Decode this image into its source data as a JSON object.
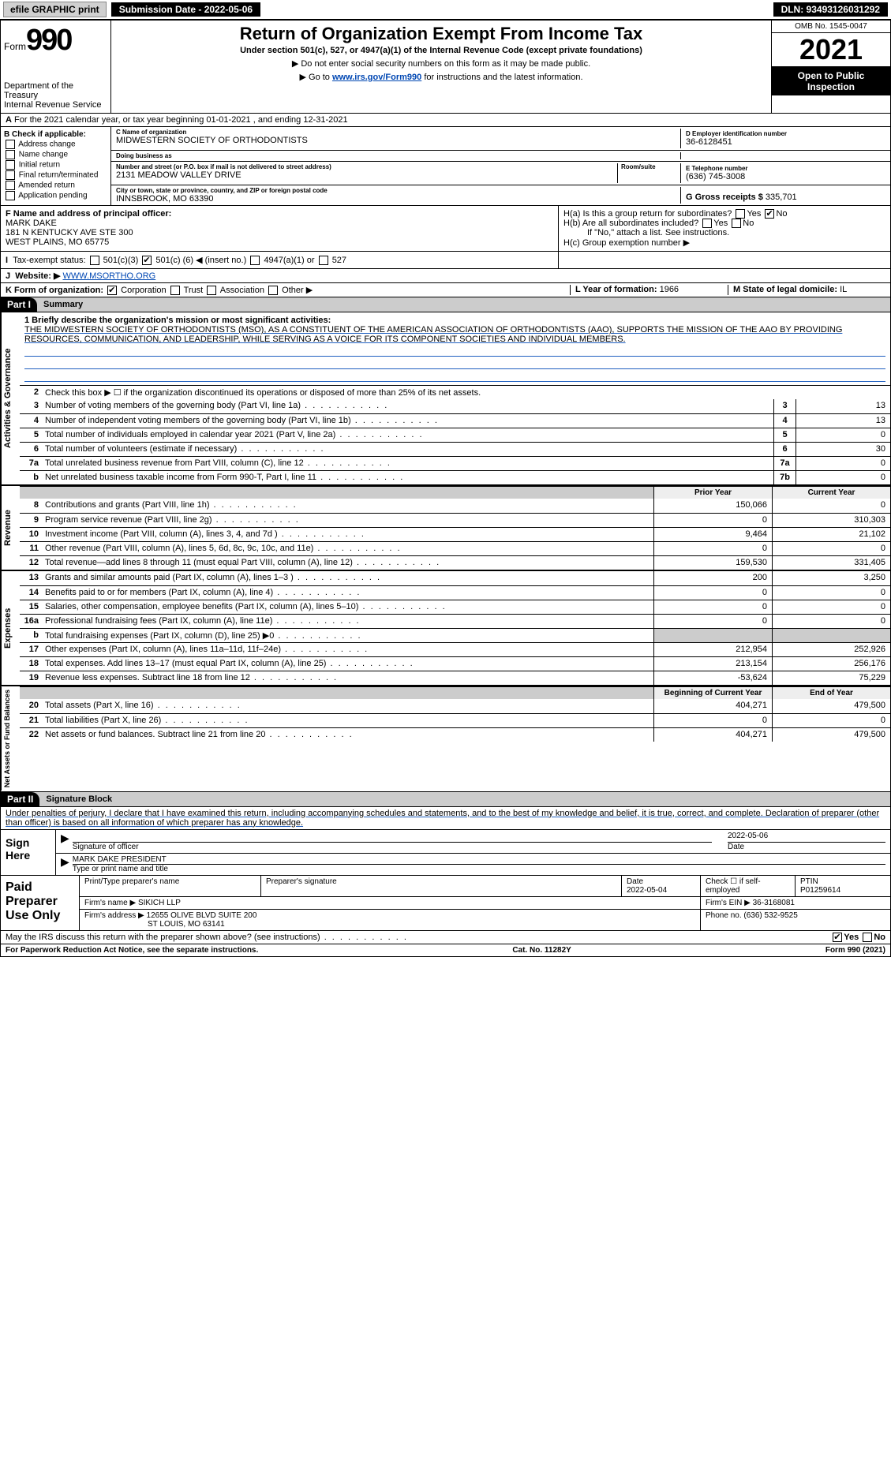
{
  "topbar": {
    "efile": "efile GRAPHIC print",
    "submission_label": "Submission Date - 2022-05-06",
    "dln_label": "DLN: 93493126031292"
  },
  "header": {
    "form_word": "Form",
    "form_number": "990",
    "dept": "Department of the Treasury",
    "irs": "Internal Revenue Service",
    "title": "Return of Organization Exempt From Income Tax",
    "subtitle": "Under section 501(c), 527, or 4947(a)(1) of the Internal Revenue Code (except private foundations)",
    "note1": "▶ Do not enter social security numbers on this form as it may be made public.",
    "note2_pre": "▶ Go to ",
    "note2_link": "www.irs.gov/Form990",
    "note2_post": " for instructions and the latest information.",
    "omb": "OMB No. 1545-0047",
    "year": "2021",
    "open": "Open to Public Inspection"
  },
  "period": "For the 2021 calendar year, or tax year beginning 01-01-2021     , and ending 12-31-2021",
  "box_b": {
    "heading": "B Check if applicable:",
    "items": [
      "Address change",
      "Name change",
      "Initial return",
      "Final return/terminated",
      "Amended return",
      "Application pending"
    ]
  },
  "box_c": {
    "name_lbl": "C Name of organization",
    "name": "MIDWESTERN SOCIETY OF ORTHODONTISTS",
    "dba_lbl": "Doing business as",
    "dba": "",
    "street_lbl": "Number and street (or P.O. box if mail is not delivered to street address)",
    "room_lbl": "Room/suite",
    "street": "2131 MEADOW VALLEY DRIVE",
    "city_lbl": "City or town, state or province, country, and ZIP or foreign postal code",
    "city": "INNSBROOK, MO  63390"
  },
  "box_d": {
    "lbl": "D Employer identification number",
    "val": "36-6128451"
  },
  "box_e": {
    "lbl": "E Telephone number",
    "val": "(636) 745-3008"
  },
  "box_g": {
    "lbl": "G Gross receipts $",
    "val": "335,701"
  },
  "box_f": {
    "lbl": "F Name and address of principal officer:",
    "name": "MARK DAKE",
    "addr1": "181 N KENTUCKY AVE STE 300",
    "addr2": "WEST PLAINS, MO  65775"
  },
  "box_h": {
    "a": "H(a)  Is this a group return for subordinates?",
    "b": "H(b)  Are all subordinates included?",
    "b_note": "If \"No,\" attach a list. See instructions.",
    "c": "H(c)  Group exemption number ▶",
    "yes": "Yes",
    "no": "No"
  },
  "box_i": {
    "lbl": "Tax-exempt status:",
    "c3": "501(c)(3)",
    "c_pre": "501(c) (",
    "c_num": "6",
    "c_post": ") ◀ (insert no.)",
    "a1": "4947(a)(1) or",
    "527": "527"
  },
  "box_j": {
    "lbl": "Website: ▶",
    "val": "WWW.MSORTHO.ORG"
  },
  "box_k": {
    "lbl": "K Form of organization:",
    "corp": "Corporation",
    "trust": "Trust",
    "assoc": "Association",
    "other": "Other ▶"
  },
  "box_l": {
    "lbl": "L Year of formation:",
    "val": "1966"
  },
  "box_m": {
    "lbl": "M State of legal domicile:",
    "val": "IL"
  },
  "part1": {
    "hdr": "Part I",
    "title": "Summary",
    "q1_lbl": "1 Briefly describe the organization's mission or most significant activities:",
    "q1_text": "THE MIDWESTERN SOCIETY OF ORTHODONTISTS (MSO), AS A CONSTITUENT OF THE AMERICAN ASSOCIATION OF ORTHODONTISTS (AAO), SUPPORTS THE MISSION OF THE AAO BY PROVIDING RESOURCES, COMMUNICATION, AND LEADERSHIP, WHILE SERVING AS A VOICE FOR ITS COMPONENT SOCIETIES AND INDIVIDUAL MEMBERS.",
    "q2": "Check this box ▶ ☐  if the organization discontinued its operations or disposed of more than 25% of its net assets.",
    "lines_ag": [
      {
        "n": "3",
        "t": "Number of voting members of the governing body (Part VI, line 1a)",
        "b": "3",
        "v": "13"
      },
      {
        "n": "4",
        "t": "Number of independent voting members of the governing body (Part VI, line 1b)",
        "b": "4",
        "v": "13"
      },
      {
        "n": "5",
        "t": "Total number of individuals employed in calendar year 2021 (Part V, line 2a)",
        "b": "5",
        "v": "0"
      },
      {
        "n": "6",
        "t": "Total number of volunteers (estimate if necessary)",
        "b": "6",
        "v": "30"
      },
      {
        "n": "7a",
        "t": "Total unrelated business revenue from Part VIII, column (C), line 12",
        "b": "7a",
        "v": "0"
      },
      {
        "n": "b",
        "t": "Net unrelated business taxable income from Form 990-T, Part I, line 11",
        "b": "7b",
        "v": "0"
      }
    ],
    "prior": "Prior Year",
    "current": "Current Year",
    "revenue": [
      {
        "n": "8",
        "t": "Contributions and grants (Part VIII, line 1h)",
        "p": "150,066",
        "c": "0"
      },
      {
        "n": "9",
        "t": "Program service revenue (Part VIII, line 2g)",
        "p": "0",
        "c": "310,303"
      },
      {
        "n": "10",
        "t": "Investment income (Part VIII, column (A), lines 3, 4, and 7d )",
        "p": "9,464",
        "c": "21,102"
      },
      {
        "n": "11",
        "t": "Other revenue (Part VIII, column (A), lines 5, 6d, 8c, 9c, 10c, and 11e)",
        "p": "0",
        "c": "0"
      },
      {
        "n": "12",
        "t": "Total revenue—add lines 8 through 11 (must equal Part VIII, column (A), line 12)",
        "p": "159,530",
        "c": "331,405"
      }
    ],
    "expenses": [
      {
        "n": "13",
        "t": "Grants and similar amounts paid (Part IX, column (A), lines 1–3 )",
        "p": "200",
        "c": "3,250"
      },
      {
        "n": "14",
        "t": "Benefits paid to or for members (Part IX, column (A), line 4)",
        "p": "0",
        "c": "0"
      },
      {
        "n": "15",
        "t": "Salaries, other compensation, employee benefits (Part IX, column (A), lines 5–10)",
        "p": "0",
        "c": "0"
      },
      {
        "n": "16a",
        "t": "Professional fundraising fees (Part IX, column (A), line 11e)",
        "p": "0",
        "c": "0"
      },
      {
        "n": "b",
        "t": "Total fundraising expenses (Part IX, column (D), line 25) ▶0",
        "p": "",
        "c": "",
        "shade": true
      },
      {
        "n": "17",
        "t": "Other expenses (Part IX, column (A), lines 11a–11d, 11f–24e)",
        "p": "212,954",
        "c": "252,926"
      },
      {
        "n": "18",
        "t": "Total expenses. Add lines 13–17 (must equal Part IX, column (A), line 25)",
        "p": "213,154",
        "c": "256,176"
      },
      {
        "n": "19",
        "t": "Revenue less expenses. Subtract line 18 from line 12",
        "p": "-53,624",
        "c": "75,229"
      }
    ],
    "boy": "Beginning of Current Year",
    "eoy": "End of Year",
    "netassets": [
      {
        "n": "20",
        "t": "Total assets (Part X, line 16)",
        "p": "404,271",
        "c": "479,500"
      },
      {
        "n": "21",
        "t": "Total liabilities (Part X, line 26)",
        "p": "0",
        "c": "0"
      },
      {
        "n": "22",
        "t": "Net assets or fund balances. Subtract line 21 from line 20",
        "p": "404,271",
        "c": "479,500"
      }
    ],
    "vtab_ag": "Activities & Governance",
    "vtab_rev": "Revenue",
    "vtab_exp": "Expenses",
    "vtab_na": "Net Assets or Fund Balances"
  },
  "part2": {
    "hdr": "Part II",
    "title": "Signature Block",
    "penalty": "Under penalties of perjury, I declare that I have examined this return, including accompanying schedules and statements, and to the best of my knowledge and belief, it is true, correct, and complete. Declaration of preparer (other than officer) is based on all information of which preparer has any knowledge."
  },
  "sign": {
    "here": "Sign Here",
    "sig_lbl": "Signature of officer",
    "date_lbl": "Date",
    "date": "2022-05-06",
    "name": "MARK DAKE PRESIDENT",
    "name_lbl": "Type or print name and title"
  },
  "prep": {
    "lbl": "Paid Preparer Use Only",
    "r1": {
      "a": "Print/Type preparer's name",
      "b": "Preparer's signature",
      "c": "Date",
      "cv": "2022-05-04",
      "d": "Check ☐ if self-employed",
      "e": "PTIN",
      "ev": "P01259614"
    },
    "r2": {
      "a": "Firm's name    ▶",
      "av": "SIKICH LLP",
      "b": "Firm's EIN ▶",
      "bv": "36-3168081"
    },
    "r3": {
      "a": "Firm's address ▶",
      "av": "12655 OLIVE BLVD SUITE 200",
      "av2": "ST LOUIS, MO  63141",
      "b": "Phone no.",
      "bv": "(636) 532-9525"
    }
  },
  "discuss": {
    "q": "May the IRS discuss this return with the preparer shown above? (see instructions)",
    "yes": "Yes",
    "no": "No"
  },
  "footer": {
    "a": "For Paperwork Reduction Act Notice, see the separate instructions.",
    "b": "Cat. No. 11282Y",
    "c": "Form 990 (2021)"
  }
}
